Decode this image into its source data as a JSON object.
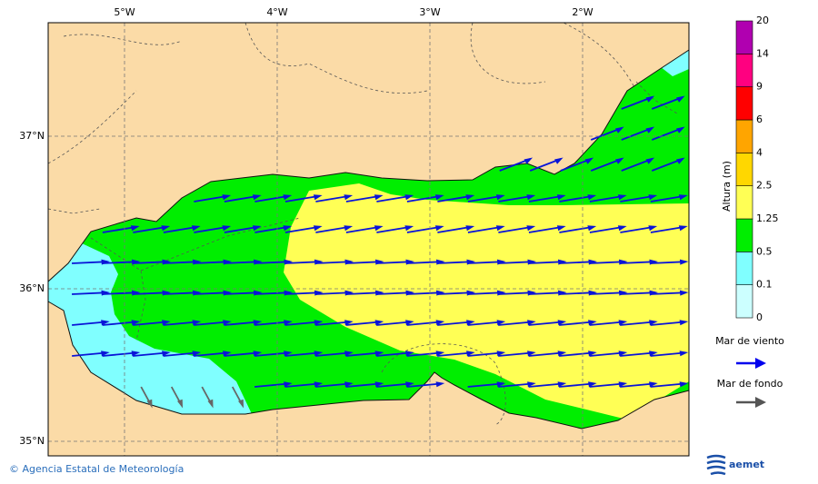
{
  "map": {
    "x_axis_labels": [
      "5°W",
      "4°W",
      "3°W",
      "2°W"
    ],
    "y_axis_labels": [
      "37°N",
      "36°N",
      "35°N"
    ],
    "colorbar": {
      "title": "Altura (m)",
      "labels": [
        "0",
        "0.1",
        "0.5",
        "1.25",
        "2.5",
        "4",
        "6",
        "9",
        "14",
        "20"
      ]
    },
    "legend": {
      "wind_sea": "Mar de viento",
      "swell": "Mar de fondo"
    }
  },
  "footer": {
    "credit": "© Agencia Estatal de Meteorología",
    "logo": "aemet"
  }
}
